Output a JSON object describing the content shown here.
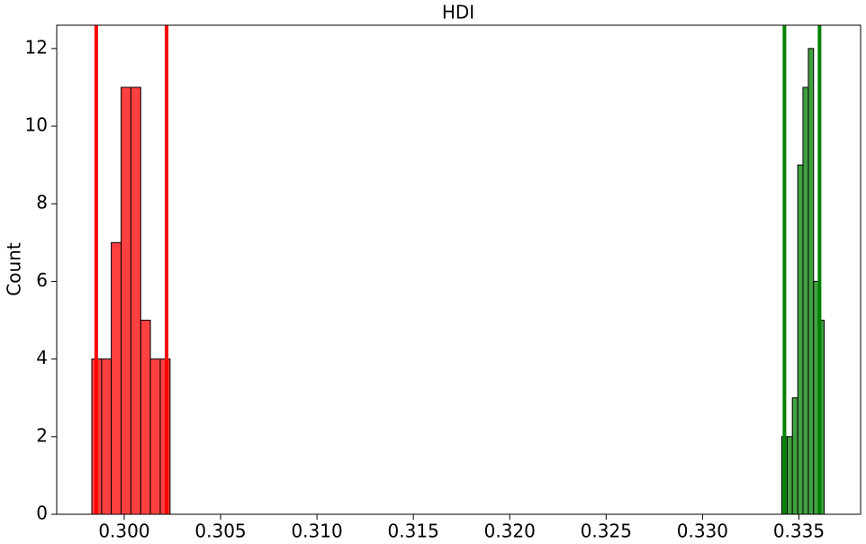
{
  "chart_data": {
    "type": "histogram",
    "title": "HDI",
    "ylabel": "Count",
    "series": [
      {
        "color": "#ff4040",
        "bins": [
          0.29832,
          0.29883,
          0.29933,
          0.29984,
          0.30035,
          0.30086,
          0.30136,
          0.30187,
          0.30238
        ],
        "values": [
          4,
          4,
          7,
          11,
          11,
          5,
          4,
          4
        ]
      },
      {
        "color": "#40a040",
        "bins": [
          0.33411,
          0.33439,
          0.33466,
          0.33494,
          0.33521,
          0.33549,
          0.33576,
          0.33604,
          0.33631
        ],
        "values": [
          2,
          2,
          3,
          9,
          11,
          12,
          6,
          5
        ]
      }
    ],
    "vlines": [
      {
        "x": 0.29855,
        "color": "#ff0000"
      },
      {
        "x": 0.3022,
        "color": "#ff0000"
      },
      {
        "x": 0.33425,
        "color": "#008000"
      },
      {
        "x": 0.33607,
        "color": "#008000"
      }
    ],
    "xlim": [
      0.2965,
      0.3382
    ],
    "ylim": [
      0,
      12.6
    ],
    "xticks": [
      {
        "value": 0.3,
        "label": "0.300"
      },
      {
        "value": 0.305,
        "label": "0.305"
      },
      {
        "value": 0.31,
        "label": "0.310"
      },
      {
        "value": 0.315,
        "label": "0.315"
      },
      {
        "value": 0.32,
        "label": "0.320"
      },
      {
        "value": 0.325,
        "label": "0.325"
      },
      {
        "value": 0.33,
        "label": "0.330"
      },
      {
        "value": 0.335,
        "label": "0.335"
      }
    ],
    "yticks": [
      0,
      2,
      4,
      6,
      8,
      10,
      12
    ]
  }
}
